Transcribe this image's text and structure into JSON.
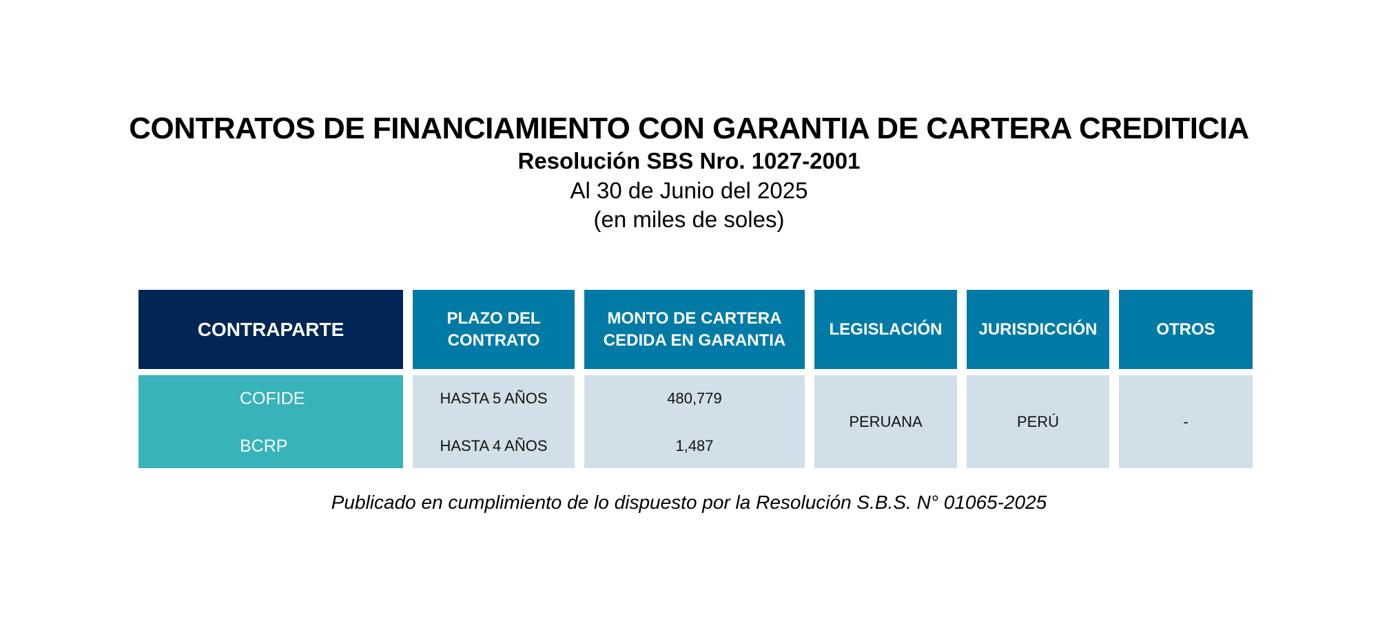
{
  "header": {
    "title": "CONTRATOS DE FINANCIAMIENTO CON GARANTIA DE CARTERA CREDITICIA",
    "subtitle": "Resolución SBS Nro. 1027-2001",
    "date": "Al 30 de Junio del 2025",
    "unit": "(en miles de soles)"
  },
  "table": {
    "columns": {
      "contraparte": "CONTRAPARTE",
      "plazo_1": "PLAZO DEL",
      "plazo_2": "CONTRATO",
      "monto_1": "MONTO DE CARTERA",
      "monto_2": "CEDIDA EN GARANTIA",
      "legislacion": "LEGISLACIÓN",
      "jurisdiccion": "JURISDICCIÓN",
      "otros": "OTROS"
    },
    "rows": [
      {
        "contraparte": "COFIDE",
        "plazo": "HASTA 5 AÑOS",
        "monto": "480,779"
      },
      {
        "contraparte": "BCRP",
        "plazo": "HASTA 4 AÑOS",
        "monto": "1,487"
      }
    ],
    "legislacion": "PERUANA",
    "jurisdiccion": "PERÚ",
    "otros": "-"
  },
  "colors": {
    "header_dark": "#002655",
    "header_blue": "#017ba6",
    "counterpart_teal": "#37b3b9",
    "body_light": "#d1dfe9"
  },
  "footnote": "Publicado en cumplimiento de lo dispuesto por la Resolución S.B.S. N° 01065-2025"
}
